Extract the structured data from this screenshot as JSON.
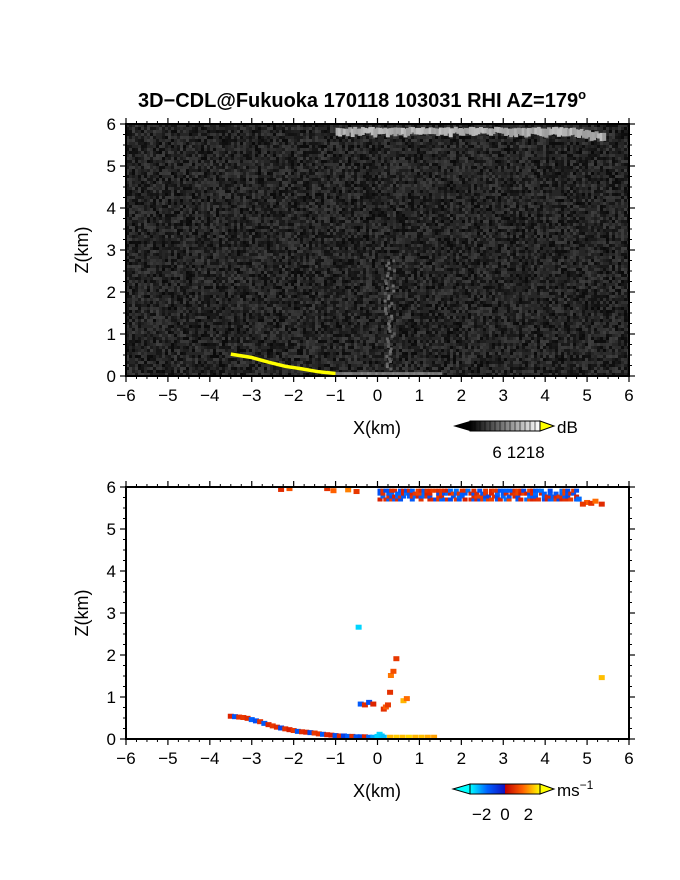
{
  "title": "3D−CDL@Fukuoka 170118 103031 RHI AZ=179",
  "title_superscript": "o",
  "chart_data": [
    {
      "type": "heatmap",
      "panel": "top",
      "quantity": "received signal intensity",
      "xlabel": "X(km)",
      "ylabel": "Z(km)",
      "xlim": [
        -6,
        6
      ],
      "ylim": [
        0,
        6
      ],
      "xticks": [
        "−6",
        "−5",
        "−4",
        "−3",
        "−2",
        "−1",
        "0",
        "1",
        "2",
        "3",
        "4",
        "5",
        "6"
      ],
      "yticks": [
        "0",
        "1",
        "2",
        "3",
        "4",
        "5",
        "6"
      ],
      "colorbar": {
        "unit": "dB",
        "ticks": [
          "6",
          "12",
          "18"
        ],
        "values": [
          6,
          12,
          18
        ],
        "colormap": "gray",
        "high_color": "#ffff00"
      },
      "background_noise_db": 4,
      "features": [
        {
          "kind": "ground_echo_yellow",
          "points": [
            [
              -3.5,
              0.52
            ],
            [
              -3.0,
              0.44
            ],
            [
              -2.6,
              0.33
            ],
            [
              -2.2,
              0.23
            ],
            [
              -1.8,
              0.17
            ],
            [
              -1.4,
              0.1
            ],
            [
              -1.0,
              0.06
            ]
          ]
        },
        {
          "kind": "bright_band_near_top",
          "x_range": [
            -1.0,
            5.4
          ],
          "z": 5.85,
          "db": 11
        },
        {
          "kind": "faint_column",
          "x": 0.25,
          "z_range": [
            0.2,
            2.8
          ],
          "db": 7
        },
        {
          "kind": "faint_surface_layer",
          "x_range": [
            -1.0,
            1.5
          ],
          "z": 0.05,
          "db": 9
        }
      ]
    },
    {
      "type": "scatter",
      "panel": "bottom",
      "quantity": "Doppler velocity",
      "xlabel": "X(km)",
      "ylabel": "Z(km)",
      "xlim": [
        -6,
        6
      ],
      "ylim": [
        0,
        6
      ],
      "xticks": [
        "−6",
        "−5",
        "−4",
        "−3",
        "−2",
        "−1",
        "0",
        "1",
        "2",
        "3",
        "4",
        "5",
        "6"
      ],
      "yticks": [
        "0",
        "1",
        "2",
        "3",
        "4",
        "5",
        "6"
      ],
      "colorbar": {
        "unit": "ms",
        "unit_superscript": "−1",
        "ticks": [
          "−2",
          "0",
          "2"
        ],
        "values": [
          -2,
          0,
          2
        ],
        "vmin": -3,
        "vmax": 3
      },
      "points": [
        {
          "x": -3.5,
          "z": 0.53,
          "v": 0.6
        },
        {
          "x": -3.4,
          "z": 0.52,
          "v": -1.3
        },
        {
          "x": -3.3,
          "z": 0.51,
          "v": 0.8
        },
        {
          "x": -3.2,
          "z": 0.5,
          "v": 0.9
        },
        {
          "x": -3.1,
          "z": 0.48,
          "v": 0.7
        },
        {
          "x": -3.0,
          "z": 0.45,
          "v": -1.5
        },
        {
          "x": -2.9,
          "z": 0.42,
          "v": -1.2
        },
        {
          "x": -2.8,
          "z": 0.4,
          "v": 0.8
        },
        {
          "x": -2.7,
          "z": 0.36,
          "v": -1.4
        },
        {
          "x": -2.6,
          "z": 0.33,
          "v": 0.6
        },
        {
          "x": -2.5,
          "z": 0.3,
          "v": 0.9
        },
        {
          "x": -2.4,
          "z": 0.27,
          "v": 0.7
        },
        {
          "x": -2.3,
          "z": 0.25,
          "v": -1.0
        },
        {
          "x": -2.2,
          "z": 0.23,
          "v": 0.8
        },
        {
          "x": -2.1,
          "z": 0.21,
          "v": 0.5
        },
        {
          "x": -2.0,
          "z": 0.19,
          "v": 0.9
        },
        {
          "x": -1.9,
          "z": 0.17,
          "v": -1.3
        },
        {
          "x": -1.8,
          "z": 0.16,
          "v": 0.7
        },
        {
          "x": -1.7,
          "z": 0.15,
          "v": 0.6
        },
        {
          "x": -1.6,
          "z": 0.14,
          "v": -1.1
        },
        {
          "x": -1.5,
          "z": 0.13,
          "v": 0.9
        },
        {
          "x": -1.4,
          "z": 0.11,
          "v": 0.8
        },
        {
          "x": -1.3,
          "z": 0.1,
          "v": -1.4
        },
        {
          "x": -1.2,
          "z": 0.09,
          "v": 0.6
        },
        {
          "x": -1.1,
          "z": 0.08,
          "v": 0.5
        },
        {
          "x": -1.0,
          "z": 0.07,
          "v": -1.2
        },
        {
          "x": -0.9,
          "z": 0.06,
          "v": 0.7
        },
        {
          "x": -0.8,
          "z": 0.06,
          "v": -0.9
        },
        {
          "x": -0.7,
          "z": 0.05,
          "v": -1.5
        },
        {
          "x": -0.6,
          "z": 0.05,
          "v": 0.8
        },
        {
          "x": -0.5,
          "z": 0.04,
          "v": -1.3
        },
        {
          "x": -0.4,
          "z": 0.04,
          "v": -1.1
        },
        {
          "x": -0.3,
          "z": 0.04,
          "v": 0.6
        },
        {
          "x": -0.2,
          "z": 0.03,
          "v": -1.6
        },
        {
          "x": -0.1,
          "z": 0.03,
          "v": -2.2
        },
        {
          "x": 0.0,
          "z": 0.05,
          "v": -2.6
        },
        {
          "x": 0.05,
          "z": 0.1,
          "v": -2.6
        },
        {
          "x": 0.1,
          "z": 0.06,
          "v": -2.5
        },
        {
          "x": 0.15,
          "z": 0.03,
          "v": -2.4
        },
        {
          "x": 0.3,
          "z": 0.03,
          "v": 2.3
        },
        {
          "x": 0.45,
          "z": 0.03,
          "v": 2.5
        },
        {
          "x": 0.6,
          "z": 0.03,
          "v": 2.4
        },
        {
          "x": 0.75,
          "z": 0.03,
          "v": 2.6
        },
        {
          "x": 0.9,
          "z": 0.03,
          "v": 2.3
        },
        {
          "x": 1.05,
          "z": 0.03,
          "v": 2.4
        },
        {
          "x": 1.2,
          "z": 0.03,
          "v": 2.2
        },
        {
          "x": 1.35,
          "z": 0.03,
          "v": 2.1
        },
        {
          "x": -0.45,
          "z": 2.65,
          "v": -2.6
        },
        {
          "x": -0.4,
          "z": 0.82,
          "v": -1.4
        },
        {
          "x": -0.3,
          "z": 0.8,
          "v": 0.7
        },
        {
          "x": -0.2,
          "z": 0.86,
          "v": -1.2
        },
        {
          "x": -0.1,
          "z": 0.82,
          "v": 0.6
        },
        {
          "x": 0.15,
          "z": 0.7,
          "v": 0.8
        },
        {
          "x": 0.2,
          "z": 0.75,
          "v": 1.4
        },
        {
          "x": 0.25,
          "z": 0.8,
          "v": 0.9
        },
        {
          "x": 0.3,
          "z": 1.1,
          "v": 0.8
        },
        {
          "x": 0.32,
          "z": 1.5,
          "v": 1.7
        },
        {
          "x": 0.38,
          "z": 1.6,
          "v": 1.2
        },
        {
          "x": 0.45,
          "z": 1.9,
          "v": 0.9
        },
        {
          "x": 0.62,
          "z": 0.9,
          "v": 2.3
        },
        {
          "x": 0.7,
          "z": 0.95,
          "v": 1.6
        },
        {
          "x": 5.35,
          "z": 1.45,
          "v": 2.4
        },
        {
          "x": -1.2,
          "z": 5.95,
          "v": 0.8
        },
        {
          "x": -1.05,
          "z": 5.9,
          "v": 1.5
        },
        {
          "x": -0.7,
          "z": 5.92,
          "v": 1.8
        },
        {
          "x": -0.5,
          "z": 5.88,
          "v": 0.9
        },
        {
          "x": -2.3,
          "z": 5.93,
          "v": 0.7
        },
        {
          "x": -2.1,
          "z": 5.95,
          "v": 1.3
        },
        {
          "x": 4.8,
          "z": 5.7,
          "v": -1.6
        },
        {
          "x": 5.0,
          "z": 5.62,
          "v": 1.4
        },
        {
          "x": 5.1,
          "z": 5.6,
          "v": 0.8
        },
        {
          "x": 5.2,
          "z": 5.65,
          "v": 1.6
        },
        {
          "x": 5.35,
          "z": 5.58,
          "v": 0.7
        },
        {
          "x": 4.9,
          "z": 5.58,
          "v": 0.9
        }
      ],
      "band": {
        "x_range": [
          0.0,
          4.7
        ],
        "z_range": [
          5.75,
          6.0
        ],
        "description_values": [
          -1.4,
          0.8
        ]
      }
    }
  ]
}
